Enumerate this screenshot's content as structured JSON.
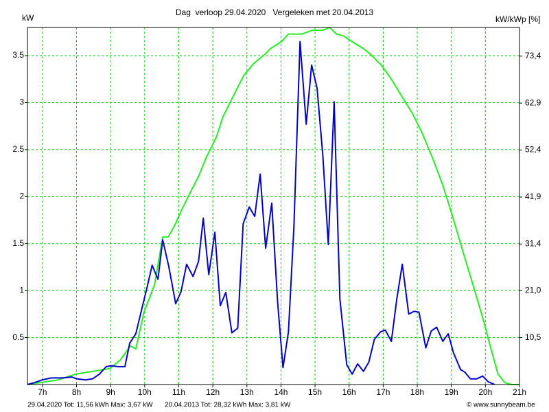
{
  "chart_data": {
    "type": "line",
    "title": "Dag  verloop 29.04.2020   Vergeleken met 20.04.2013",
    "y_label": "kW",
    "y2_label": "kW/kWp [%]",
    "footer": "© www.sunnybeam.be",
    "xlim": [
      6.56,
      21
    ],
    "ylim": [
      0,
      3.8
    ],
    "y2lim": [
      0,
      79.8
    ],
    "grid": true,
    "xticks": [
      {
        "value": 7,
        "label": "7h"
      },
      {
        "value": 8,
        "label": "8h"
      },
      {
        "value": 9,
        "label": "9h"
      },
      {
        "value": 10,
        "label": "10h"
      },
      {
        "value": 11,
        "label": "11h"
      },
      {
        "value": 12,
        "label": "12h"
      },
      {
        "value": 13,
        "label": "13h"
      },
      {
        "value": 14,
        "label": "14h"
      },
      {
        "value": 15,
        "label": "15h"
      },
      {
        "value": 16,
        "label": "16h"
      },
      {
        "value": 17,
        "label": "17h"
      },
      {
        "value": 18,
        "label": "18h"
      },
      {
        "value": 19,
        "label": "19h"
      },
      {
        "value": 20,
        "label": "20h"
      },
      {
        "value": 21,
        "label": "21h"
      }
    ],
    "yticks": [
      0.5,
      1,
      1.5,
      2,
      2.5,
      3,
      3.5
    ],
    "y2ticks": [
      {
        "value": 10.5,
        "label": "10,5"
      },
      {
        "value": 21.0,
        "label": "21,0"
      },
      {
        "value": 31.4,
        "label": "31,4"
      },
      {
        "value": 41.9,
        "label": "41,9"
      },
      {
        "value": 52.4,
        "label": "52,4"
      },
      {
        "value": 62.9,
        "label": "62,9"
      },
      {
        "value": 73.4,
        "label": "73,4"
      }
    ],
    "series": [
      {
        "name": "29.04.2020 Tot: 11,56 kWh Max: 3,67 kW",
        "color": "#0000cc",
        "x": [
          6.56,
          6.76,
          7,
          7.26,
          7.56,
          7.87,
          8.01,
          8.27,
          8.47,
          8.67,
          8.87,
          9.02,
          9.22,
          9.42,
          9.56,
          9.74,
          9.9,
          10.08,
          10.22,
          10.39,
          10.53,
          10.71,
          10.91,
          11.07,
          11.23,
          11.42,
          11.58,
          11.72,
          11.88,
          12.06,
          12.22,
          12.38,
          12.56,
          12.73,
          12.89,
          13.07,
          13.23,
          13.39,
          13.55,
          13.73,
          13.9,
          14.06,
          14.22,
          14.38,
          14.56,
          14.74,
          14.9,
          15.06,
          15.23,
          15.39,
          15.56,
          15.73,
          15.93,
          16.09,
          16.25,
          16.42,
          16.58,
          16.74,
          16.92,
          17.06,
          17.24,
          17.4,
          17.56,
          17.75,
          17.91,
          18.05,
          18.25,
          18.41,
          18.57,
          18.75,
          18.91,
          19.06,
          19.27,
          19.4,
          19.56,
          19.74,
          19.92,
          20.08,
          20.27
        ],
        "values": [
          0,
          0.02,
          0.05,
          0.07,
          0.07,
          0.08,
          0.06,
          0.05,
          0.06,
          0.11,
          0.19,
          0.2,
          0.19,
          0.19,
          0.44,
          0.54,
          0.78,
          1.05,
          1.27,
          1.12,
          1.54,
          1.25,
          0.86,
          0.99,
          1.28,
          1.15,
          1.31,
          1.77,
          1.17,
          1.62,
          0.84,
          0.98,
          0.55,
          0.6,
          1.71,
          1.89,
          1.79,
          2.24,
          1.45,
          1.93,
          0.88,
          0.18,
          0.56,
          1.68,
          3.65,
          2.77,
          3.4,
          3.15,
          2.43,
          1.49,
          3.01,
          0.91,
          0.21,
          0.11,
          0.22,
          0.14,
          0.24,
          0.48,
          0.56,
          0.58,
          0.46,
          0.91,
          1.28,
          0.75,
          0.78,
          0.77,
          0.39,
          0.57,
          0.61,
          0.46,
          0.54,
          0.34,
          0.16,
          0.13,
          0.06,
          0.06,
          0.09,
          0.03,
          0
        ]
      },
      {
        "name": "20.04.2013 Tot: 28,32 kWh Max: 3,81 kW",
        "color": "#22ee22",
        "x": [
          6.56,
          7.46,
          7.97,
          8.47,
          8.98,
          9.28,
          9.58,
          9.74,
          9.98,
          10.29,
          10.53,
          10.69,
          10.89,
          11.09,
          11.29,
          11.6,
          11.8,
          12.1,
          12.3,
          12.6,
          12.91,
          13.21,
          13.51,
          13.71,
          14.02,
          14.22,
          14.62,
          14.92,
          15.23,
          15.43,
          15.63,
          15.83,
          16.13,
          16.44,
          16.64,
          16.94,
          17.24,
          17.54,
          17.85,
          18.15,
          18.45,
          18.75,
          19.06,
          19.36,
          19.66,
          19.96,
          20.17,
          20.37,
          20.57,
          20.77,
          21
        ],
        "values": [
          0,
          0.05,
          0.11,
          0.14,
          0.17,
          0.26,
          0.41,
          0.38,
          0.77,
          1.06,
          1.57,
          1.57,
          1.7,
          1.86,
          2.01,
          2.23,
          2.41,
          2.63,
          2.85,
          3.07,
          3.29,
          3.42,
          3.51,
          3.58,
          3.65,
          3.73,
          3.73,
          3.77,
          3.77,
          3.8,
          3.73,
          3.71,
          3.64,
          3.57,
          3.51,
          3.4,
          3.25,
          3.07,
          2.89,
          2.67,
          2.41,
          2.12,
          1.76,
          1.39,
          1.03,
          0.66,
          0.37,
          0.11,
          0.02,
          0,
          0
        ]
      }
    ]
  }
}
